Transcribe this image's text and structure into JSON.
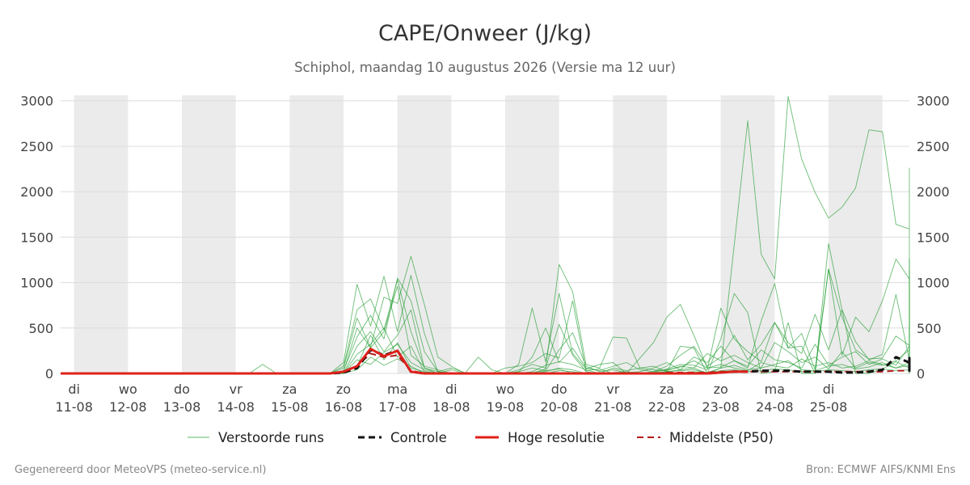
{
  "colors": {
    "band": "#ebebeb",
    "grid": "#dcdcdc",
    "perturbed": "#1a9a2a",
    "control": "#111111",
    "hires": "#e0201a",
    "median": "#b21818",
    "title": "#333333",
    "subtitle": "#666666",
    "tick": "#444444",
    "footer": "#888888"
  },
  "footer": {
    "left": "Gegenereerd door MeteoVPS (meteo-service.nl)",
    "right": "Bron: ECMWF AIFS/KNMI Ens"
  },
  "chart_data": {
    "type": "line",
    "title": "CAPE/Onweer (J/kg)",
    "subtitle": "Schiphol, maandag 10 augustus 2026 (Versie ma 12 uur)",
    "xlabel": "",
    "ylabel": "",
    "x_range": [
      "10-08 18:00",
      "26-08 12:00"
    ],
    "ylim": [
      0,
      3060
    ],
    "y_ticks": [
      0,
      500,
      1000,
      1500,
      2000,
      2500,
      3000
    ],
    "x_ticks": [
      {
        "day": "di",
        "date": "11-08"
      },
      {
        "day": "wo",
        "date": "12-08"
      },
      {
        "day": "do",
        "date": "13-08"
      },
      {
        "day": "vr",
        "date": "14-08"
      },
      {
        "day": "za",
        "date": "15-08"
      },
      {
        "day": "zo",
        "date": "16-08"
      },
      {
        "day": "ma",
        "date": "17-08"
      },
      {
        "day": "di",
        "date": "18-08"
      },
      {
        "day": "wo",
        "date": "19-08"
      },
      {
        "day": "do",
        "date": "20-08"
      },
      {
        "day": "vr",
        "date": "21-08"
      },
      {
        "day": "za",
        "date": "22-08"
      },
      {
        "day": "zo",
        "date": "23-08"
      },
      {
        "day": "ma",
        "date": "24-08"
      },
      {
        "day": "di",
        "date": "25-08"
      }
    ],
    "shaded_days": [
      "11-08",
      "13-08",
      "15-08",
      "17-08",
      "19-08",
      "21-08",
      "23-08",
      "25-08"
    ],
    "grid": true,
    "legend_position": "bottom",
    "x_step_hours": 6,
    "series_control": {
      "name": "Controle",
      "values": [
        0,
        0,
        0,
        0,
        0,
        0,
        0,
        0,
        0,
        0,
        0,
        0,
        0,
        0,
        0,
        0,
        0,
        0,
        0,
        0,
        0,
        10,
        60,
        260,
        200,
        250,
        20,
        0,
        0,
        0,
        0,
        0,
        0,
        0,
        0,
        0,
        0,
        0,
        0,
        0,
        0,
        0,
        0,
        0,
        0,
        0,
        0,
        0,
        0,
        10,
        20,
        20,
        30,
        30,
        30,
        20,
        20,
        20,
        10,
        10,
        20,
        40,
        180,
        120,
        130,
        110,
        40,
        0,
        170,
        30,
        120,
        120,
        50,
        40
      ]
    },
    "series_hires": {
      "name": "Hoge resolutie",
      "values": [
        0,
        0,
        0,
        0,
        0,
        0,
        0,
        0,
        0,
        0,
        0,
        0,
        0,
        0,
        0,
        0,
        0,
        0,
        0,
        0,
        0,
        20,
        80,
        270,
        190,
        250,
        20,
        0,
        0,
        0,
        0,
        0,
        0,
        0,
        0,
        0,
        0,
        0,
        0,
        0,
        0,
        0,
        0,
        0,
        0,
        0,
        0,
        0,
        0,
        10,
        20,
        20
      ]
    },
    "series_median": {
      "name": "Middelste (P50)",
      "values": [
        0,
        0,
        0,
        0,
        0,
        0,
        0,
        0,
        0,
        0,
        0,
        0,
        0,
        0,
        0,
        0,
        0,
        0,
        0,
        0,
        0,
        20,
        80,
        220,
        180,
        200,
        30,
        0,
        0,
        0,
        0,
        0,
        0,
        0,
        0,
        0,
        0,
        0,
        0,
        0,
        0,
        0,
        0,
        0,
        0,
        10,
        10,
        10,
        10,
        20,
        20,
        20,
        20,
        20,
        20,
        20,
        20,
        20,
        20,
        20,
        20,
        20,
        30,
        30,
        30,
        30,
        20,
        20,
        30,
        20,
        30,
        30,
        30,
        30
      ]
    },
    "series_perturbed": [
      {
        "name": "Verstoorde runs",
        "values": [
          0,
          0,
          0,
          0,
          0,
          0,
          0,
          0,
          0,
          0,
          0,
          0,
          0,
          0,
          0,
          100,
          0,
          0,
          0,
          0,
          0,
          80,
          700,
          820,
          480,
          1030,
          460,
          60,
          20,
          0,
          10,
          0,
          0,
          0,
          0,
          10,
          30,
          50,
          0,
          0,
          0,
          0,
          0,
          0,
          10,
          20,
          40,
          60,
          0,
          380,
          880,
          670,
          0,
          20,
          560,
          0,
          0,
          1430,
          700,
          0,
          0,
          50,
          130,
          60,
          80,
          130,
          1260,
          1050,
          0,
          330,
          680,
          80,
          30,
          1000
        ]
      },
      {
        "name": "Verstoorde runs",
        "values": [
          0,
          0,
          0,
          0,
          0,
          0,
          0,
          0,
          0,
          0,
          0,
          0,
          0,
          0,
          0,
          0,
          0,
          0,
          0,
          0,
          0,
          120,
          980,
          520,
          1070,
          460,
          1080,
          440,
          20,
          60,
          10,
          0,
          0,
          0,
          0,
          0,
          50,
          1200,
          900,
          100,
          60,
          400,
          390,
          60,
          80,
          20,
          300,
          280,
          0,
          60,
          1420,
          2780,
          1310,
          1040,
          3050,
          2360,
          1990,
          1710,
          1830,
          2040,
          2680,
          2660,
          1640,
          1590,
          700,
          50,
          100,
          570,
          140,
          180,
          2260,
          1270,
          400,
          1500
        ]
      },
      {
        "name": "Verstoorde runs",
        "values": [
          0,
          0,
          0,
          0,
          0,
          0,
          0,
          0,
          0,
          0,
          0,
          0,
          0,
          0,
          0,
          0,
          0,
          0,
          0,
          0,
          0,
          60,
          610,
          290,
          840,
          770,
          1290,
          760,
          180,
          80,
          0,
          180,
          40,
          0,
          100,
          720,
          130,
          880,
          220,
          50,
          100,
          120,
          0,
          170,
          340,
          620,
          760,
          420,
          60,
          70,
          140,
          60,
          580,
          990,
          280,
          440,
          40,
          1150,
          200,
          620,
          460,
          800,
          1260,
          1040,
          1140,
          480,
          330,
          250,
          100,
          690,
          820,
          40,
          420,
          460
        ]
      },
      {
        "name": "Verstoorde runs",
        "values": [
          0,
          0,
          0,
          0,
          0,
          0,
          0,
          0,
          0,
          0,
          0,
          0,
          0,
          0,
          0,
          0,
          0,
          0,
          0,
          0,
          0,
          30,
          400,
          640,
          380,
          1050,
          800,
          240,
          20,
          0,
          0,
          0,
          0,
          60,
          80,
          120,
          220,
          170,
          800,
          30,
          50,
          0,
          0,
          0,
          10,
          50,
          100,
          90,
          40,
          720,
          380,
          240,
          130,
          560,
          280,
          300,
          0,
          1150,
          620,
          260,
          160,
          170,
          410,
          310,
          340,
          180,
          40,
          460,
          230,
          380,
          260,
          400,
          1050,
          30
        ]
      },
      {
        "name": "Verstoorde runs",
        "values": [
          0,
          0,
          0,
          0,
          0,
          0,
          0,
          0,
          0,
          0,
          0,
          0,
          0,
          0,
          0,
          0,
          0,
          0,
          0,
          0,
          0,
          20,
          500,
          280,
          460,
          960,
          200,
          80,
          40,
          0,
          0,
          0,
          0,
          0,
          20,
          180,
          500,
          120,
          280,
          60,
          30,
          80,
          120,
          40,
          20,
          80,
          200,
          300,
          80,
          180,
          420,
          150,
          320,
          560,
          340,
          220,
          650,
          260,
          700,
          350,
          150,
          210,
          870,
          140,
          300,
          0,
          80,
          560,
          180,
          260,
          360,
          240,
          180,
          260
        ]
      },
      {
        "name": "Verstoorde runs",
        "values": [
          0,
          0,
          0,
          0,
          0,
          0,
          0,
          0,
          0,
          0,
          0,
          0,
          0,
          0,
          0,
          0,
          0,
          0,
          0,
          0,
          0,
          0,
          300,
          460,
          240,
          420,
          700,
          60,
          0,
          40,
          0,
          0,
          0,
          0,
          40,
          100,
          60,
          540,
          200,
          20,
          0,
          60,
          30,
          60,
          40,
          30,
          80,
          60,
          220,
          140,
          200,
          120,
          60,
          340,
          240,
          120,
          180,
          50,
          240,
          60,
          120,
          90,
          140,
          260,
          200,
          80,
          300,
          200,
          320,
          100,
          150,
          180,
          120,
          220
        ]
      },
      {
        "name": "Verstoorde runs",
        "values": [
          0,
          0,
          0,
          0,
          0,
          0,
          0,
          0,
          0,
          0,
          0,
          0,
          0,
          0,
          0,
          0,
          0,
          0,
          0,
          0,
          0,
          0,
          210,
          320,
          500,
          180,
          300,
          20,
          0,
          0,
          10,
          0,
          0,
          0,
          20,
          60,
          30,
          260,
          450,
          80,
          20,
          40,
          10,
          20,
          60,
          120,
          40,
          180,
          120,
          300,
          140,
          80,
          260,
          150,
          120,
          60,
          320,
          90,
          180,
          240,
          100,
          160,
          90,
          300,
          120,
          60,
          200,
          150,
          240,
          80,
          120,
          60,
          200,
          150
        ]
      },
      {
        "name": "Verstoorde runs",
        "values": [
          0,
          0,
          0,
          0,
          0,
          0,
          0,
          0,
          0,
          0,
          0,
          0,
          0,
          0,
          0,
          0,
          0,
          0,
          0,
          0,
          0,
          0,
          150,
          100,
          230,
          320,
          120,
          40,
          0,
          0,
          0,
          0,
          0,
          0,
          0,
          20,
          90,
          130,
          100,
          40,
          0,
          10,
          20,
          0,
          20,
          40,
          70,
          140,
          60,
          100,
          60,
          30,
          120,
          80,
          60,
          160,
          80,
          120,
          60,
          80,
          140,
          100,
          60,
          120,
          40,
          200,
          80,
          100,
          160,
          60,
          90,
          130,
          80,
          110
        ]
      },
      {
        "name": "Verstoorde runs",
        "values": [
          0,
          0,
          0,
          0,
          0,
          0,
          0,
          0,
          0,
          0,
          0,
          0,
          0,
          0,
          0,
          0,
          0,
          0,
          0,
          0,
          0,
          10,
          80,
          420,
          150,
          340,
          60,
          20,
          0,
          0,
          0,
          0,
          0,
          0,
          0,
          0,
          20,
          60,
          40,
          0,
          0,
          0,
          0,
          0,
          0,
          20,
          30,
          40,
          10,
          60,
          90,
          40,
          60,
          100,
          140,
          40,
          30,
          80,
          100,
          50,
          70,
          120,
          60,
          90,
          70,
          40,
          100,
          60,
          90,
          120,
          50,
          80,
          40,
          70
        ]
      },
      {
        "name": "Verstoorde runs",
        "values": [
          0,
          0,
          0,
          0,
          0,
          0,
          0,
          0,
          0,
          0,
          0,
          0,
          0,
          0,
          0,
          0,
          0,
          0,
          0,
          0,
          0,
          0,
          40,
          180,
          90,
          160,
          80,
          0,
          0,
          0,
          0,
          0,
          0,
          0,
          0,
          0,
          0,
          30,
          20,
          0,
          0,
          0,
          0,
          0,
          0,
          0,
          10,
          20,
          10,
          30,
          40,
          20,
          30,
          50,
          40,
          20,
          20,
          40,
          30,
          20,
          40,
          50,
          30,
          40,
          30,
          20,
          40,
          30,
          50,
          40,
          30,
          20,
          30,
          40
        ]
      }
    ]
  }
}
